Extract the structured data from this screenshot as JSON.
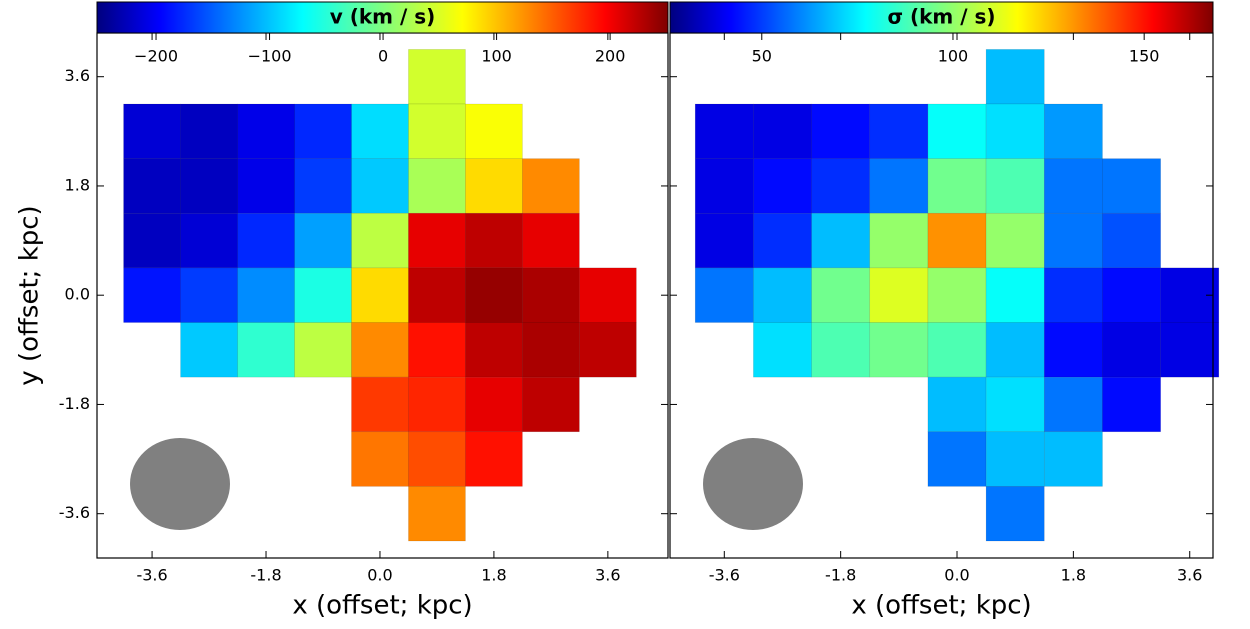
{
  "chart_data": [
    {
      "type": "map",
      "colorbar_label": "v (km / s)",
      "colormap": "jet",
      "clim": [
        -252,
        251
      ],
      "cticks": [
        {
          "value": -200,
          "label": "−200"
        },
        {
          "value": -100,
          "label": "−100"
        },
        0,
        100,
        200
      ],
      "xlabel": "x (offset; kpc)",
      "ylabel": "y (offset; kpc)",
      "xlim": [
        -4.47,
        4.55
      ],
      "ylim": [
        -4.33,
        4.32
      ],
      "xticks": [
        -3.6,
        -1.8,
        {
          "value": 0,
          "label": "0.0"
        },
        1.8,
        3.6
      ],
      "yticks": [
        -3.6,
        -1.8,
        {
          "value": 0,
          "label": "0.0"
        },
        1.8,
        3.6
      ],
      "x": [
        -3.6,
        -2.7,
        -1.8,
        -0.9,
        0,
        0.9,
        1.8,
        2.7,
        3.6
      ],
      "y": [
        3.6,
        2.7,
        1.8,
        0.9,
        0,
        -0.9,
        -1.8,
        -2.7,
        -3.6
      ],
      "z": [
        [
          null,
          null,
          null,
          null,
          null,
          40,
          null,
          null,
          null
        ],
        [
          -210,
          -220,
          -200,
          -170,
          -80,
          40,
          60,
          null,
          null
        ],
        [
          -220,
          -220,
          -200,
          -160,
          -90,
          20,
          80,
          120,
          null
        ],
        [
          -220,
          -210,
          -170,
          -110,
          30,
          200,
          220,
          200,
          null
        ],
        [
          -180,
          -160,
          -120,
          -50,
          80,
          220,
          240,
          230,
          200
        ],
        [
          null,
          -90,
          -40,
          30,
          120,
          180,
          220,
          230,
          220
        ],
        [
          null,
          null,
          null,
          null,
          160,
          170,
          200,
          220,
          null
        ],
        [
          null,
          null,
          null,
          null,
          130,
          150,
          180,
          null,
          null
        ],
        [
          null,
          null,
          null,
          null,
          null,
          120,
          null,
          null,
          null
        ]
      ]
    },
    {
      "type": "map",
      "colorbar_label": "σ (km / s)",
      "colormap": "jet",
      "clim": [
        26,
        168
      ],
      "cticks": [
        50,
        100,
        150
      ],
      "xlabel": "x (offset; kpc)",
      "xlim": [
        -4.44,
        3.96
      ],
      "ylim": [
        -4.33,
        4.32
      ],
      "xticks": [
        -3.6,
        -1.8,
        {
          "value": 0,
          "label": "0.0"
        },
        1.8,
        3.6
      ],
      "yticks": [
        -3.6,
        -1.8,
        0,
        1.8,
        3.6
      ],
      "x": [
        -3.6,
        -2.7,
        -1.8,
        -0.9,
        0,
        0.9,
        1.8,
        2.7,
        3.6
      ],
      "y": [
        3.6,
        2.7,
        1.8,
        0.9,
        0,
        -0.9,
        -1.8,
        -2.7,
        -3.6
      ],
      "z": [
        [
          null,
          null,
          null,
          null,
          null,
          70,
          null,
          null,
          null
        ],
        [
          40,
          40,
          45,
          50,
          80,
          75,
          65,
          null,
          null
        ],
        [
          40,
          45,
          50,
          60,
          95,
          90,
          60,
          60,
          null
        ],
        [
          40,
          50,
          70,
          100,
          130,
          100,
          60,
          55,
          null
        ],
        [
          60,
          70,
          95,
          110,
          100,
          80,
          50,
          45,
          40
        ],
        [
          null,
          75,
          90,
          95,
          90,
          70,
          45,
          40,
          40
        ],
        [
          null,
          null,
          null,
          null,
          70,
          75,
          60,
          45,
          null
        ],
        [
          null,
          null,
          null,
          null,
          60,
          70,
          70,
          null,
          null
        ],
        [
          null,
          null,
          null,
          null,
          null,
          60,
          null,
          null,
          null
        ]
      ]
    }
  ]
}
